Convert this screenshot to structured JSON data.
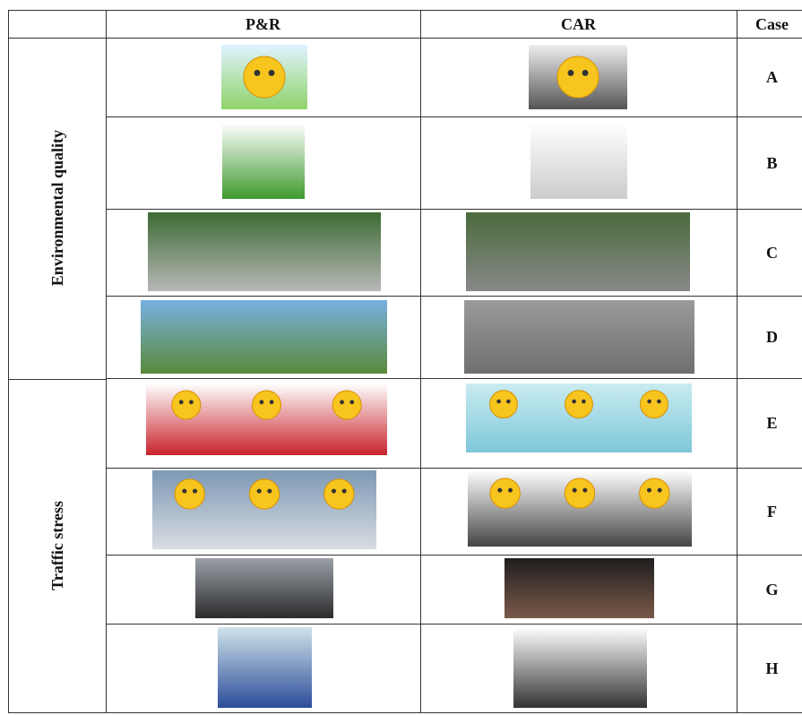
{
  "header": {
    "pr": "P&R",
    "car": "CAR",
    "case": "Case"
  },
  "groups": [
    {
      "label": "Environmental quality"
    },
    {
      "label": "Traffic stress"
    }
  ],
  "rows": [
    {
      "case": "A"
    },
    {
      "case": "B"
    },
    {
      "case": "C"
    },
    {
      "case": "D"
    },
    {
      "case": "E"
    },
    {
      "case": "F"
    },
    {
      "case": "G"
    },
    {
      "case": "H"
    }
  ]
}
